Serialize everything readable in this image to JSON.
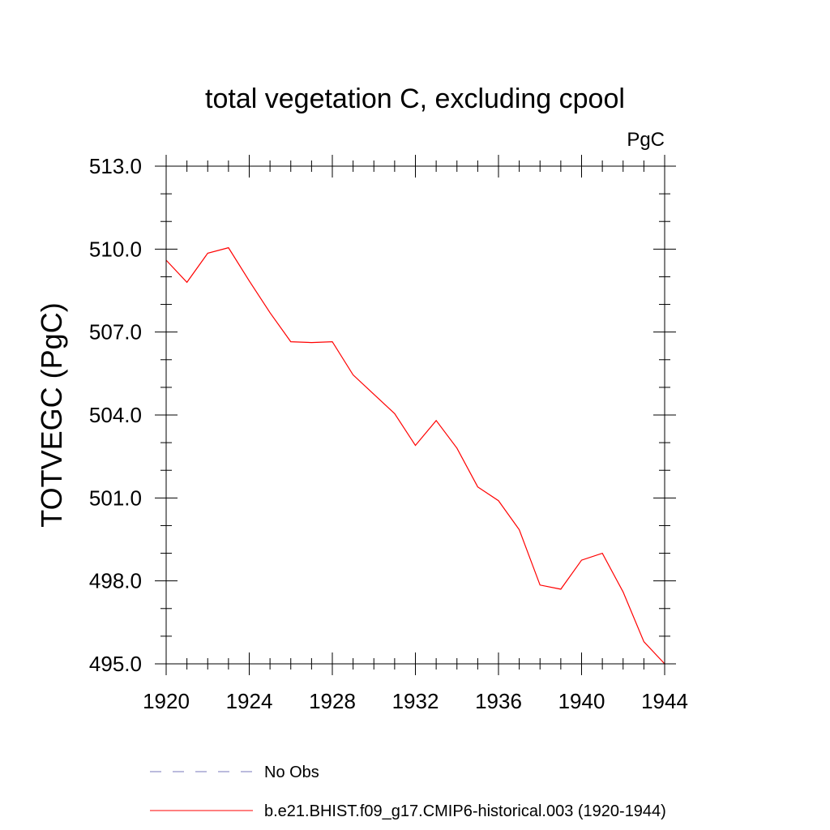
{
  "chart_data": {
    "type": "line",
    "title": "total vegetation C, excluding cpool",
    "units_label": "PgC",
    "ylabel": "TOTVEGC  (PgC)",
    "xlabel": "",
    "xlim": [
      1920,
      1944
    ],
    "ylim": [
      495.0,
      513.0
    ],
    "x_ticks": [
      1920,
      1924,
      1928,
      1932,
      1936,
      1940,
      1944
    ],
    "x_tick_labels": [
      "1920",
      "1924",
      "1928",
      "1932",
      "1936",
      "1940",
      "1944"
    ],
    "x_minor_ticks": [
      1921,
      1922,
      1923,
      1925,
      1926,
      1927,
      1929,
      1930,
      1931,
      1933,
      1934,
      1935,
      1937,
      1938,
      1939,
      1941,
      1942,
      1943
    ],
    "y_ticks": [
      495.0,
      498.0,
      501.0,
      504.0,
      507.0,
      510.0,
      513.0
    ],
    "y_tick_labels": [
      "495.0",
      "498.0",
      "501.0",
      "504.0",
      "507.0",
      "510.0",
      "513.0"
    ],
    "y_minor_ticks": [
      496.0,
      497.0,
      499.0,
      500.0,
      502.0,
      503.0,
      505.0,
      506.0,
      508.0,
      509.0,
      511.0,
      512.0
    ],
    "grid": false,
    "legend_position": "bottom",
    "series": [
      {
        "name": "No Obs",
        "color": "#7777bb",
        "style": "dashed",
        "x": [],
        "y": []
      },
      {
        "name": "b.e21.BHIST.f09_g17.CMIP6-historical.003 (1920-1944)",
        "color": "#ff0000",
        "style": "solid",
        "x": [
          1920,
          1921,
          1922,
          1923,
          1924,
          1925,
          1926,
          1927,
          1928,
          1929,
          1930,
          1931,
          1932,
          1933,
          1934,
          1935,
          1936,
          1937,
          1938,
          1939,
          1940,
          1941,
          1942,
          1943,
          1944
        ],
        "y": [
          509.6,
          508.8,
          509.85,
          510.05,
          508.85,
          507.7,
          506.65,
          506.62,
          506.65,
          505.45,
          504.75,
          504.05,
          502.9,
          503.8,
          502.8,
          501.4,
          500.9,
          499.85,
          497.85,
          497.7,
          498.75,
          499.0,
          497.6,
          495.8,
          495.0
        ]
      }
    ]
  }
}
